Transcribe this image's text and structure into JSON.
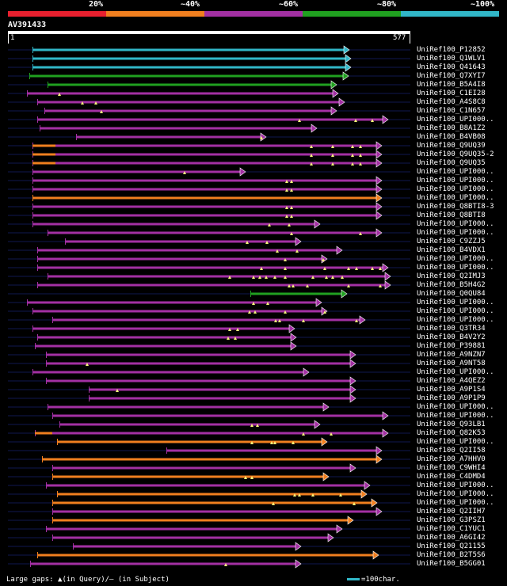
{
  "query": {
    "name": "AV391433",
    "start_label": "1",
    "end_label": "577",
    "length": 577
  },
  "legend": [
    {
      "label": "",
      "color": "#e8202f"
    },
    {
      "label": "20%",
      "color": "#f07f1f"
    },
    {
      "label": "~40%",
      "color": "#a330a3"
    },
    {
      "label": "~60%",
      "color": "#20a020"
    },
    {
      "label": "~80%",
      "color": "#31b7c8"
    },
    {
      "label": "~100%",
      "color": ""
    }
  ],
  "colors": {
    "cyan": "#31b7c8",
    "green": "#20a020",
    "purple": "#a330a3",
    "orange": "#f07f1f",
    "red": "#e8202f",
    "gap": "#f5f57a",
    "track": "#101850"
  },
  "hits": [
    {
      "label": "UniRef100_P12852",
      "c": "cyan",
      "s": 41,
      "e": 441,
      "m": []
    },
    {
      "label": "UniRef100_Q1WLV1",
      "c": "cyan",
      "s": 41,
      "e": 443,
      "m": []
    },
    {
      "label": "UniRef100_Q41643",
      "c": "cyan",
      "s": 41,
      "e": 443,
      "m": []
    },
    {
      "label": "UniRef100_Q7XYI7",
      "c": "green",
      "s": 37,
      "e": 440,
      "m": []
    },
    {
      "label": "UniRef100_B5A4I8",
      "c": "green",
      "s": 60,
      "e": 425,
      "m": []
    },
    {
      "label": "UniRef100_C1EI28",
      "c": "purple",
      "s": 34,
      "e": 427,
      "m": [
        75
      ]
    },
    {
      "label": "UniRef100_A4S8C8",
      "c": "purple",
      "s": 47,
      "e": 435,
      "m": [
        104,
        121
      ]
    },
    {
      "label": "UniRef100_C1N657",
      "c": "purple",
      "s": 56,
      "e": 425,
      "m": [
        128
      ]
    },
    {
      "label": "UniRef100_UPI000..",
      "c": "purple",
      "s": 47,
      "e": 490,
      "m": [
        378,
        449,
        470
      ]
    },
    {
      "label": "UniRef100_B8A1Z2",
      "c": "purple",
      "s": 50,
      "e": 400,
      "m": []
    },
    {
      "label": "UniRef100_B4VB08",
      "c": "purple",
      "s": 96,
      "e": 336,
      "m": [
        330
      ]
    },
    {
      "label": "UniRef100_Q9UQ39",
      "c": "purple",
      "s": 41,
      "e": 482,
      "o": 70,
      "m": [
        393,
        420,
        445,
        455
      ]
    },
    {
      "label": "UniRef100_Q9UQ35-2",
      "c": "purple",
      "s": 41,
      "e": 482,
      "o": 70,
      "m": [
        393,
        420,
        445,
        455
      ]
    },
    {
      "label": "UniRef100_Q9UQ35",
      "c": "purple",
      "s": 41,
      "e": 482,
      "o": 70,
      "m": [
        393,
        420,
        445,
        455
      ]
    },
    {
      "label": "UniRef100_UPI000..",
      "c": "purple",
      "s": 41,
      "e": 310,
      "m": [
        233
      ]
    },
    {
      "label": "UniRef100_UPI000..",
      "c": "purple",
      "s": 41,
      "e": 482,
      "m": [
        362,
        368
      ]
    },
    {
      "label": "UniRef100_UPI000..",
      "c": "purple",
      "s": 41,
      "e": 482,
      "m": [
        362,
        368
      ]
    },
    {
      "label": "UniRef100_UPI000..",
      "c": "orange",
      "s": 41,
      "e": 482,
      "m": []
    },
    {
      "label": "UniRef100_Q8BTI8-3",
      "c": "purple",
      "s": 41,
      "e": 482,
      "m": [
        362,
        368
      ]
    },
    {
      "label": "UniRef100_Q8BTI8",
      "c": "purple",
      "s": 41,
      "e": 482,
      "m": [
        362,
        368
      ]
    },
    {
      "label": "UniRef100_UPI000..",
      "c": "purple",
      "s": 41,
      "e": 404,
      "m": [
        340,
        365
      ]
    },
    {
      "label": "UniRef100_UPI000..",
      "c": "purple",
      "s": 60,
      "e": 482,
      "m": [
        368,
        455
      ]
    },
    {
      "label": "UniRef100_C9ZZJ5",
      "c": "purple",
      "s": 82,
      "e": 380,
      "m": [
        312,
        337
      ]
    },
    {
      "label": "UniRef100_B4VDX1",
      "c": "purple",
      "s": 47,
      "e": 432,
      "m": [
        350,
        375
      ]
    },
    {
      "label": "UniRef100_UPI000..",
      "c": "purple",
      "s": 47,
      "e": 413,
      "m": [
        360,
        408
      ]
    },
    {
      "label": "UniRef100_UPI000..",
      "c": "purple",
      "s": 47,
      "e": 490,
      "o": 47,
      "m": [
        330,
        360,
        410,
        440,
        450,
        470,
        480
      ]
    },
    {
      "label": "UniRef100_Q2IMJ3",
      "c": "purple",
      "s": 60,
      "e": 493,
      "m": [
        290,
        320,
        328,
        336,
        347,
        360,
        395,
        412,
        420,
        432
      ]
    },
    {
      "label": "UniRef100_B5H4G2",
      "c": "purple",
      "s": 47,
      "e": 493,
      "m": [
        365,
        370,
        388,
        440,
        480
      ]
    },
    {
      "label": "UniRef100_Q0QU84",
      "c": "green",
      "s": 316,
      "e": 438,
      "m": []
    },
    {
      "label": "UniRef100_UPI000..",
      "c": "purple",
      "s": 34,
      "e": 406,
      "m": [
        320,
        338
      ]
    },
    {
      "label": "UniRef100_UPI000..",
      "c": "purple",
      "s": 41,
      "e": 413,
      "m": [
        315,
        322,
        360,
        410
      ]
    },
    {
      "label": "UniRef100_UPI000..",
      "c": "purple",
      "s": 66,
      "e": 461,
      "m": [
        348,
        353,
        383,
        450
      ]
    },
    {
      "label": "UniRef100_Q3TR34",
      "c": "purple",
      "s": 41,
      "e": 372,
      "m": [
        290,
        300
      ]
    },
    {
      "label": "UniRef100_B4V2Y2",
      "c": "purple",
      "s": 47,
      "e": 374,
      "m": [
        288,
        297
      ]
    },
    {
      "label": "UniRef100_P39881",
      "c": "purple",
      "s": 44,
      "e": 374,
      "m": []
    },
    {
      "label": "UniRef100_A9NZN7",
      "c": "purple",
      "s": 58,
      "e": 449,
      "m": []
    },
    {
      "label": "UniRef100_A9NT58",
      "c": "purple",
      "s": 58,
      "e": 449,
      "m": [
        110
      ]
    },
    {
      "label": "UniRef100_UPI000..",
      "c": "purple",
      "s": 41,
      "e": 390,
      "m": []
    },
    {
      "label": "UniRef100_A4QEZ2",
      "c": "purple",
      "s": 58,
      "e": 449,
      "m": []
    },
    {
      "label": "UniRef100_A9P1S4",
      "c": "purple",
      "s": 112,
      "e": 449,
      "m": [
        148
      ]
    },
    {
      "label": "UniRef100_A9P1P9",
      "c": "purple",
      "s": 112,
      "e": 449,
      "m": []
    },
    {
      "label": "UniRef100_UPI000..",
      "c": "purple",
      "s": 60,
      "e": 415,
      "m": []
    },
    {
      "label": "UniRef100_UPI000..",
      "c": "purple",
      "s": 66,
      "e": 490,
      "m": []
    },
    {
      "label": "UniRef100_Q93LB1",
      "c": "purple",
      "s": 75,
      "e": 404,
      "m": [
        318,
        325
      ]
    },
    {
      "label": "UniRef100_Q82K53",
      "c": "purple",
      "s": 44,
      "e": 490,
      "o": 66,
      "m": [
        383,
        418
      ]
    },
    {
      "label": "UniRef100_UPI000..",
      "c": "orange",
      "s": 72,
      "e": 413,
      "m": [
        318,
        343,
        347,
        370
      ]
    },
    {
      "label": "UniRef100_Q2II58",
      "c": "purple",
      "s": 210,
      "e": 482,
      "m": []
    },
    {
      "label": "UniRef100_A7HHV0",
      "c": "orange",
      "s": 53,
      "e": 482,
      "m": []
    },
    {
      "label": "UniRef100_C9WHI4",
      "c": "purple",
      "s": 66,
      "e": 449,
      "m": []
    },
    {
      "label": "UniRef100_C4DMD4",
      "c": "orange",
      "s": 66,
      "e": 415,
      "m": [
        310,
        318
      ]
    },
    {
      "label": "UniRef100_UPI000..",
      "c": "purple",
      "s": 58,
      "e": 467,
      "m": []
    },
    {
      "label": "UniRef100_UPI000..",
      "c": "orange",
      "s": 72,
      "e": 463,
      "m": [
        372,
        378,
        395,
        430
      ]
    },
    {
      "label": "UniRef100_UPI000..",
      "c": "orange",
      "s": 66,
      "e": 476,
      "m": [
        345,
        447
      ]
    },
    {
      "label": "UniRef100_Q2IIH7",
      "c": "purple",
      "s": 66,
      "e": 482,
      "m": []
    },
    {
      "label": "UniRef100_G3PSZ1",
      "c": "orange",
      "s": 66,
      "e": 446,
      "m": []
    },
    {
      "label": "UniRef100_C1YUC1",
      "c": "purple",
      "s": 58,
      "e": 432,
      "m": []
    },
    {
      "label": "UniRef100_A6GI42",
      "c": "purple",
      "s": 66,
      "e": 421,
      "m": []
    },
    {
      "label": "UniRef100_Q21155",
      "c": "purple",
      "s": 92,
      "e": 380,
      "m": []
    },
    {
      "label": "UniRef100_B2T5S6",
      "c": "orange",
      "s": 47,
      "e": 478,
      "m": []
    },
    {
      "label": "UniRef100_B5GG01",
      "c": "purple",
      "s": 38,
      "e": 380,
      "m": [
        285
      ]
    }
  ],
  "footer": {
    "gaps_text": "Large gaps: ▲(in Query)/— (in Subject)",
    "scale_text": "=100char."
  }
}
